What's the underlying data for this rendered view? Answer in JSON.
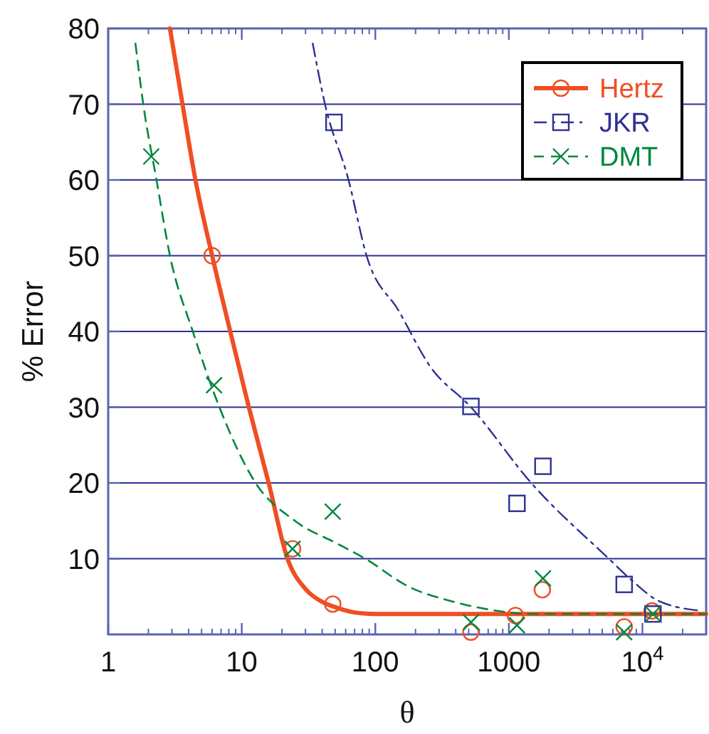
{
  "chart_data": {
    "type": "scatter",
    "xlabel": "θ",
    "ylabel": "% Error",
    "log": "x",
    "grid": "y",
    "legend": "top right",
    "xlim": [
      1,
      30000
    ],
    "ylim": [
      0,
      80
    ],
    "xticks": [
      1,
      10,
      100,
      1000,
      {
        "value": 10000,
        "label": "10$^{4}$"
      }
    ],
    "yticks": [
      10,
      20,
      30,
      40,
      50,
      60,
      70,
      80
    ],
    "series": [
      {
        "type": "line",
        "color": "#f04e23",
        "line_style": "solid",
        "marker": "none",
        "x": [
          2.9,
          3.6,
          4.5,
          6,
          8.2,
          11.3,
          15.9,
          22,
          30,
          40,
          50,
          70,
          100,
          1000,
          30000
        ],
        "values": [
          80,
          70,
          60,
          50,
          40,
          30,
          20,
          10,
          6,
          4.3,
          3.6,
          2.9,
          2.7,
          2.7,
          2.7
        ]
      },
      {
        "type": "line",
        "color": "#2e3192",
        "line_style": "dashdot",
        "marker": "none",
        "x": [
          34,
          42,
          63,
          86,
          150,
          257,
          520,
          1470,
          5600,
          8500,
          13300,
          28000
        ],
        "values": [
          78,
          70,
          60,
          50,
          42.7,
          35.4,
          30,
          20,
          10,
          7,
          4.4,
          3.1
        ]
      },
      {
        "type": "line",
        "color": "#00873e",
        "line_style": "dashed",
        "marker": "none",
        "x": [
          1.6,
          1.83,
          2.3,
          2.9,
          4.3,
          6.8,
          12.7,
          25,
          53,
          84,
          178,
          370,
          760,
          1500,
          30000
        ],
        "values": [
          78,
          70,
          60,
          50,
          40,
          30,
          20,
          15,
          11.9,
          10,
          6.3,
          4.4,
          3.2,
          2.7,
          2.7
        ]
      },
      {
        "name": "Hertz",
        "color": "#f04e23",
        "marker": "circle",
        "line_style": "solid",
        "x": [
          6,
          24,
          48,
          520,
          1120,
          1780,
          7300,
          11800
        ],
        "values": [
          50,
          11.3,
          4,
          0.3,
          2.5,
          5.9,
          1,
          3.1
        ]
      },
      {
        "name": "JKR",
        "color": "#2e3192",
        "marker": "square",
        "line_style": "dashdot",
        "x": [
          49,
          520,
          1800,
          1150,
          7300,
          12000
        ],
        "values": [
          67.6,
          30.1,
          22.2,
          17.3,
          6.6,
          2.7
        ]
      },
      {
        "name": "DMT",
        "color": "#00873e",
        "marker": "cross",
        "line_style": "dashed",
        "x": [
          2.1,
          6.2,
          24,
          48,
          520,
          1150,
          1800,
          7300,
          12000
        ],
        "values": [
          63.1,
          32.9,
          11.3,
          16.2,
          1.6,
          1.2,
          7.4,
          0.3,
          2.7
        ]
      }
    ]
  }
}
